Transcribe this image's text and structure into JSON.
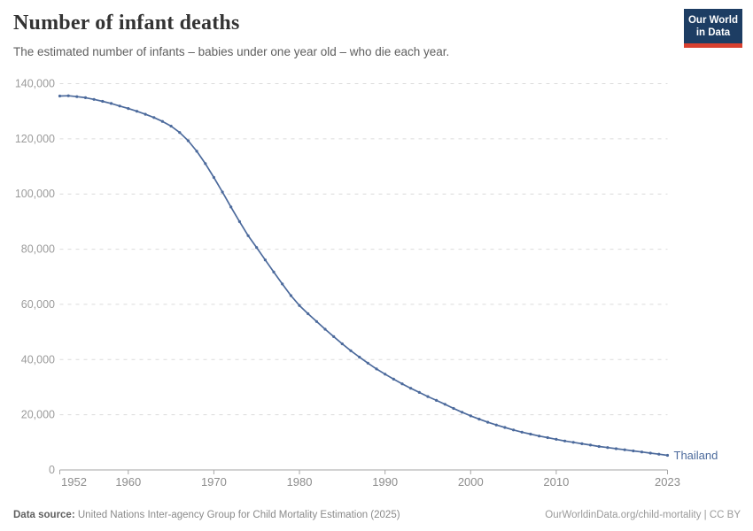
{
  "header": {
    "title": "Number of infant deaths",
    "subtitle": "The estimated number of infants – babies under one year old – who die each year."
  },
  "logo": {
    "line1": "Our World",
    "line2": "in Data",
    "bg_color": "#1d3d63",
    "stripe_color": "#d8402f"
  },
  "footer": {
    "source_label": "Data source:",
    "source_text": " United Nations Inter-agency Group for Child Mortality Estimation (2025)",
    "attribution": "OurWorldinData.org/child-mortality | CC BY"
  },
  "chart_data": {
    "type": "line",
    "title": "Number of infant deaths",
    "entity_label": "Thailand",
    "line_color": "#4c6a9c",
    "grid": "dashed horizontal",
    "legend_position": "end-of-line",
    "xlim": [
      1952,
      2023
    ],
    "ylim": [
      0,
      140000
    ],
    "x_ticks": [
      1952,
      1960,
      1970,
      1980,
      1990,
      2000,
      2010,
      2023
    ],
    "y_ticks": [
      0,
      20000,
      40000,
      60000,
      80000,
      100000,
      120000,
      140000
    ],
    "x": [
      1952,
      1953,
      1954,
      1955,
      1956,
      1957,
      1958,
      1959,
      1960,
      1961,
      1962,
      1963,
      1964,
      1965,
      1966,
      1967,
      1968,
      1969,
      1970,
      1971,
      1972,
      1973,
      1974,
      1975,
      1976,
      1977,
      1978,
      1979,
      1980,
      1981,
      1982,
      1983,
      1984,
      1985,
      1986,
      1987,
      1988,
      1989,
      1990,
      1991,
      1992,
      1993,
      1994,
      1995,
      1996,
      1997,
      1998,
      1999,
      2000,
      2001,
      2002,
      2003,
      2004,
      2005,
      2006,
      2007,
      2008,
      2009,
      2010,
      2011,
      2012,
      2013,
      2014,
      2015,
      2016,
      2017,
      2018,
      2019,
      2020,
      2021,
      2022,
      2023
    ],
    "values": [
      135500,
      135600,
      135300,
      134900,
      134300,
      133600,
      132800,
      131900,
      131000,
      130000,
      128900,
      127700,
      126300,
      124600,
      122300,
      119300,
      115500,
      111000,
      106000,
      100700,
      95300,
      90000,
      84900,
      80600,
      76100,
      71700,
      67400,
      63200,
      59600,
      56600,
      53800,
      51000,
      48300,
      45700,
      43200,
      40900,
      38700,
      36600,
      34700,
      32900,
      31200,
      29600,
      28100,
      26600,
      25200,
      23800,
      22300,
      20900,
      19600,
      18400,
      17300,
      16300,
      15400,
      14500,
      13700,
      13000,
      12300,
      11700,
      11100,
      10500,
      10000,
      9500,
      9000,
      8500,
      8100,
      7700,
      7300,
      6900,
      6500,
      6100,
      5700,
      5300
    ]
  }
}
